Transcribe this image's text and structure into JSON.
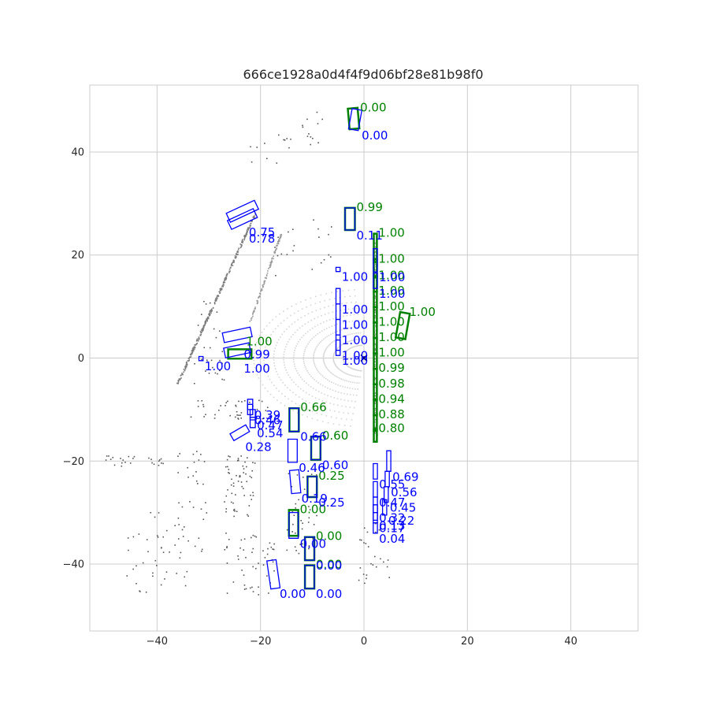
{
  "chart_data": {
    "type": "scatter",
    "title": "666ce1928a0d4f4f9d06bf28e81b98f0",
    "xlabel": "",
    "ylabel": "",
    "xlim": [
      -53,
      53
    ],
    "ylim": [
      -53,
      53
    ],
    "xticks": [
      -40,
      -20,
      0,
      20,
      40
    ],
    "yticks": [
      40,
      20,
      0,
      -20,
      -40
    ],
    "grid": true,
    "ego": {
      "x": 0,
      "y": 0,
      "marker": "x",
      "color": "#000000"
    },
    "colors": {
      "ground_truth": "#008000",
      "prediction": "#0000ff",
      "points": "#555555",
      "grid": "#cccccc"
    },
    "ground_truth_boxes": [
      {
        "cx": -2.0,
        "cy": 46.5,
        "w": 1.9,
        "l": 4.0,
        "yaw": 5,
        "label": "0.00"
      },
      {
        "cx": -2.7,
        "cy": 27.0,
        "w": 1.9,
        "l": 4.3,
        "yaw": 0,
        "label": "0.99"
      },
      {
        "cx": 2.2,
        "cy": 21.4,
        "w": 0.6,
        "l": 5.5,
        "yaw": 0,
        "label": "1.00"
      },
      {
        "cx": 2.2,
        "cy": 17.4,
        "w": 0.6,
        "l": 3.5,
        "yaw": 0,
        "label": "1.00"
      },
      {
        "cx": 2.2,
        "cy": 14.4,
        "w": 0.6,
        "l": 3.0,
        "yaw": 0,
        "label": "1.00"
      },
      {
        "cx": 2.2,
        "cy": 11.4,
        "w": 0.6,
        "l": 3.0,
        "yaw": 0,
        "label": "1.00"
      },
      {
        "cx": 2.2,
        "cy": 8.4,
        "w": 0.6,
        "l": 3.0,
        "yaw": 0,
        "label": "1.00"
      },
      {
        "cx": 7.5,
        "cy": 6.3,
        "w": 1.9,
        "l": 5.0,
        "yaw": -10,
        "label": "1.00"
      },
      {
        "cx": 2.2,
        "cy": 5.4,
        "w": 0.6,
        "l": 3.0,
        "yaw": 0,
        "label": "1.00"
      },
      {
        "cx": 2.2,
        "cy": 2.4,
        "w": 0.6,
        "l": 3.0,
        "yaw": 0,
        "label": "1.00"
      },
      {
        "cx": 2.2,
        "cy": -0.6,
        "w": 0.6,
        "l": 3.0,
        "yaw": 0,
        "label": "1.00"
      },
      {
        "cx": 2.2,
        "cy": -3.6,
        "w": 0.6,
        "l": 3.0,
        "yaw": 0,
        "label": "0.99"
      },
      {
        "cx": 2.2,
        "cy": -6.6,
        "w": 0.6,
        "l": 3.0,
        "yaw": 0,
        "label": "0.98"
      },
      {
        "cx": 2.2,
        "cy": -9.6,
        "w": 0.6,
        "l": 3.0,
        "yaw": 0,
        "label": "0.94"
      },
      {
        "cx": 2.2,
        "cy": -12.6,
        "w": 0.6,
        "l": 3.0,
        "yaw": 0,
        "label": "0.88"
      },
      {
        "cx": 2.2,
        "cy": -15.0,
        "w": 0.6,
        "l": 2.5,
        "yaw": 0,
        "label": "0.80"
      },
      {
        "cx": -24.0,
        "cy": 0.8,
        "w": 1.8,
        "l": 4.5,
        "yaw": 90,
        "label": "1.00"
      },
      {
        "cx": -13.5,
        "cy": -12.0,
        "w": 1.8,
        "l": 4.5,
        "yaw": 0,
        "label": "0.66"
      },
      {
        "cx": -9.3,
        "cy": -17.5,
        "w": 1.8,
        "l": 4.5,
        "yaw": 0,
        "label": "0.60"
      },
      {
        "cx": -10.0,
        "cy": -25.0,
        "w": 1.8,
        "l": 4.0,
        "yaw": 0,
        "label": "0.25"
      },
      {
        "cx": -13.6,
        "cy": -32.0,
        "w": 1.8,
        "l": 5.0,
        "yaw": 0,
        "label": "0.00"
      },
      {
        "cx": -10.5,
        "cy": -37.0,
        "w": 1.8,
        "l": 4.5,
        "yaw": 0,
        "label": "0.00"
      },
      {
        "cx": -10.5,
        "cy": -42.5,
        "w": 1.8,
        "l": 4.5,
        "yaw": 0,
        "label": "0.00"
      }
    ],
    "prediction_boxes": [
      {
        "cx": -1.7,
        "cy": 46.3,
        "w": 1.9,
        "l": 4.0,
        "yaw": -10,
        "label": "0.00"
      },
      {
        "cx": -2.7,
        "cy": 27.0,
        "w": 1.9,
        "l": 4.3,
        "yaw": 0,
        "label": "0.11"
      },
      {
        "cx": -23.5,
        "cy": 28.5,
        "w": 1.9,
        "l": 6.0,
        "yaw": -65,
        "label": "0.75"
      },
      {
        "cx": -23.5,
        "cy": 27.0,
        "w": 1.9,
        "l": 5.5,
        "yaw": -65,
        "label": "0.78"
      },
      {
        "cx": 2.2,
        "cy": 19.0,
        "w": 0.8,
        "l": 4.5,
        "yaw": 0,
        "label": "1.00"
      },
      {
        "cx": 2.2,
        "cy": 15.0,
        "w": 0.8,
        "l": 3.0,
        "yaw": 0,
        "label": "1.00"
      },
      {
        "cx": -5.0,
        "cy": 17.2,
        "w": 0.8,
        "l": 0.8,
        "yaw": 0,
        "label": "1.00"
      },
      {
        "cx": -5.0,
        "cy": 12.0,
        "w": 0.8,
        "l": 3.0,
        "yaw": 0,
        "label": "1.00"
      },
      {
        "cx": -5.0,
        "cy": 9.0,
        "w": 0.8,
        "l": 3.0,
        "yaw": 0,
        "label": "1.00"
      },
      {
        "cx": -5.0,
        "cy": 6.0,
        "w": 0.8,
        "l": 3.0,
        "yaw": 0,
        "label": "1.00"
      },
      {
        "cx": -5.0,
        "cy": 3.0,
        "w": 0.8,
        "l": 3.0,
        "yaw": 0,
        "label": "1.00"
      },
      {
        "cx": -5.0,
        "cy": 2.0,
        "w": 0.8,
        "l": 3.0,
        "yaw": 0,
        "label": "1.00"
      },
      {
        "cx": -24.5,
        "cy": 4.5,
        "w": 1.9,
        "l": 5.5,
        "yaw": -78,
        "label": "0.99"
      },
      {
        "cx": -24.5,
        "cy": 1.5,
        "w": 1.9,
        "l": 5.0,
        "yaw": -78,
        "label": "1.00"
      },
      {
        "cx": -31.5,
        "cy": -0.1,
        "w": 0.8,
        "l": 0.8,
        "yaw": 0,
        "label": "1.00"
      },
      {
        "cx": -22.0,
        "cy": -9.0,
        "w": 1.0,
        "l": 2.0,
        "yaw": 0,
        "label": "0.39"
      },
      {
        "cx": -22.0,
        "cy": -10.0,
        "w": 1.0,
        "l": 2.0,
        "yaw": 0,
        "label": "0.46"
      },
      {
        "cx": -21.5,
        "cy": -11.0,
        "w": 1.0,
        "l": 2.0,
        "yaw": 0,
        "label": "0.47"
      },
      {
        "cx": -21.5,
        "cy": -12.5,
        "w": 1.0,
        "l": 2.0,
        "yaw": 0,
        "label": "0.54"
      },
      {
        "cx": -24.0,
        "cy": -14.5,
        "w": 1.5,
        "l": 3.5,
        "yaw": -60,
        "label": "0.28"
      },
      {
        "cx": -13.5,
        "cy": -12.0,
        "w": 1.8,
        "l": 4.5,
        "yaw": 0,
        "label": "0.66"
      },
      {
        "cx": -9.3,
        "cy": -17.5,
        "w": 1.8,
        "l": 4.5,
        "yaw": 0,
        "label": "0.60"
      },
      {
        "cx": -13.8,
        "cy": -18.0,
        "w": 1.8,
        "l": 4.5,
        "yaw": 0,
        "label": "0.46"
      },
      {
        "cx": -13.3,
        "cy": -24.0,
        "w": 1.8,
        "l": 4.5,
        "yaw": 5,
        "label": "0.19"
      },
      {
        "cx": -10.0,
        "cy": -25.0,
        "w": 1.8,
        "l": 4.0,
        "yaw": 0,
        "label": "0.25"
      },
      {
        "cx": -13.6,
        "cy": -32.5,
        "w": 1.8,
        "l": 5.0,
        "yaw": 0,
        "label": "0.00"
      },
      {
        "cx": -10.5,
        "cy": -37.0,
        "w": 1.8,
        "l": 4.5,
        "yaw": 0,
        "label": "0.00"
      },
      {
        "cx": -17.5,
        "cy": -42.0,
        "w": 1.8,
        "l": 5.5,
        "yaw": 8,
        "label": "0.00"
      },
      {
        "cx": -10.5,
        "cy": -42.5,
        "w": 1.8,
        "l": 4.5,
        "yaw": 0,
        "label": "0.00"
      },
      {
        "cx": 4.8,
        "cy": -20.0,
        "w": 0.8,
        "l": 4.0,
        "yaw": 0,
        "label": "0.69"
      },
      {
        "cx": 2.2,
        "cy": -22.0,
        "w": 0.8,
        "l": 3.0,
        "yaw": 0,
        "label": "0.55"
      },
      {
        "cx": 4.5,
        "cy": -23.5,
        "w": 0.8,
        "l": 3.0,
        "yaw": 0,
        "label": "0.56"
      },
      {
        "cx": 2.2,
        "cy": -25.5,
        "w": 0.8,
        "l": 3.0,
        "yaw": 0,
        "label": "0.47"
      },
      {
        "cx": 4.3,
        "cy": -26.5,
        "w": 0.8,
        "l": 3.0,
        "yaw": 0,
        "label": "0.45"
      },
      {
        "cx": 2.2,
        "cy": -28.5,
        "w": 0.8,
        "l": 3.0,
        "yaw": 0,
        "label": "0.32"
      },
      {
        "cx": 4.0,
        "cy": -29.0,
        "w": 0.8,
        "l": 3.0,
        "yaw": 0,
        "label": "0.22"
      },
      {
        "cx": 2.2,
        "cy": -30.0,
        "w": 0.8,
        "l": 3.0,
        "yaw": 0,
        "label": "0.13"
      },
      {
        "cx": 2.2,
        "cy": -31.0,
        "w": 0.8,
        "l": 2.0,
        "yaw": 0,
        "label": "0.17"
      },
      {
        "cx": 2.2,
        "cy": -33.0,
        "w": 0.8,
        "l": 2.0,
        "yaw": 0,
        "label": "0.04"
      }
    ]
  }
}
